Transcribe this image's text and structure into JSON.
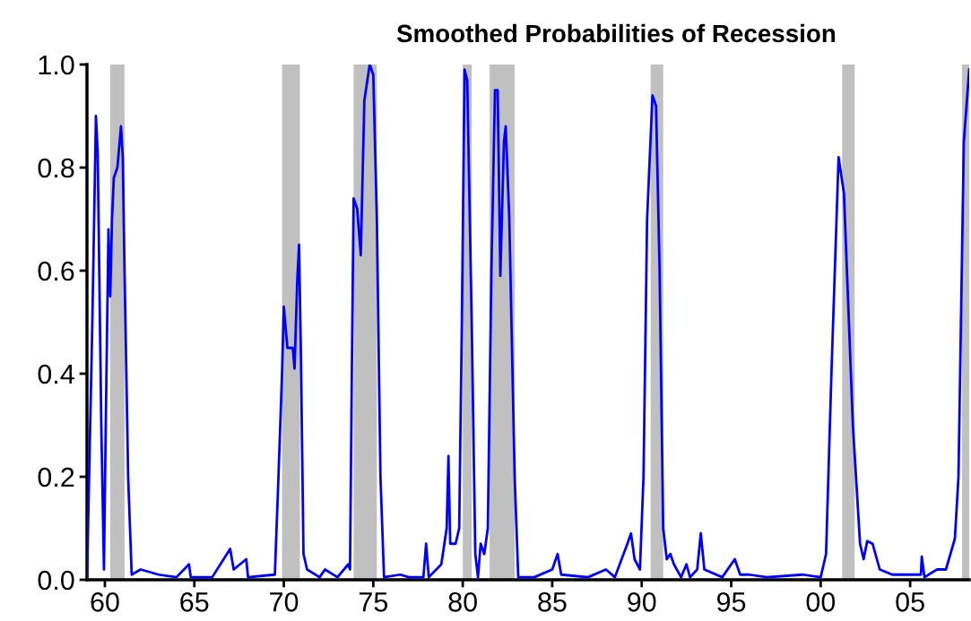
{
  "chart_data": {
    "type": "line",
    "title": "Smoothed Probabilities of Recession",
    "x": [
      1959.0,
      1959.3,
      1959.5,
      1959.6,
      1959.8,
      1959.95,
      1960.05,
      1960.2,
      1960.3,
      1960.4,
      1960.5,
      1960.7,
      1960.9,
      1961.0,
      1961.1,
      1961.3,
      1961.5,
      1962,
      1963,
      1964,
      1964.7,
      1964.8,
      1966,
      1967,
      1967.2,
      1967.9,
      1968,
      1969.5,
      1969.7,
      1969.9,
      1970.0,
      1970.2,
      1970.5,
      1970.6,
      1970.75,
      1970.85,
      1970.95,
      1971.1,
      1971.3,
      1972,
      1972.3,
      1973,
      1973.6,
      1973.7,
      1973.8,
      1973.9,
      1974.1,
      1974.3,
      1974.5,
      1974.8,
      1975.0,
      1975.2,
      1975.4,
      1975.6,
      1976.5,
      1977,
      1977.8,
      1977.95,
      1978.1,
      1978.8,
      1979.1,
      1979.2,
      1979.3,
      1979.6,
      1979.8,
      1979.95,
      1980.1,
      1980.25,
      1980.5,
      1980.7,
      1980.85,
      1981.0,
      1981.2,
      1981.4,
      1981.6,
      1981.8,
      1981.95,
      1982.1,
      1982.3,
      1982.4,
      1982.6,
      1982.9,
      1983.1,
      1984,
      1985,
      1985.3,
      1985.5,
      1987,
      1988,
      1988.5,
      1989.2,
      1989.4,
      1989.6,
      1989.9,
      1990.1,
      1990.3,
      1990.6,
      1990.8,
      1991.0,
      1991.2,
      1991.4,
      1991.6,
      1991.8,
      1992.2,
      1992.5,
      1992.7,
      1993.1,
      1993.3,
      1993.5,
      1994.5,
      1995.2,
      1995.5,
      1996,
      1997,
      1999,
      2000,
      2000.3,
      2000.6,
      2001.0,
      2001.3,
      2001.8,
      2002.2,
      2002.4,
      2002.6,
      2002.9,
      2003.3,
      2004,
      2005,
      2005.6,
      2005.65,
      2005.8,
      2006.5,
      2007,
      2007.5,
      2007.7,
      2008,
      2008.3
    ],
    "series": [
      {
        "color": "#0000ff",
        "values": [
          0,
          0.5,
          0.9,
          0.83,
          0.3,
          0.02,
          0.3,
          0.68,
          0.55,
          0.7,
          0.78,
          0.8,
          0.88,
          0.82,
          0.6,
          0.2,
          0.01,
          0.02,
          0.01,
          0.005,
          0.03,
          0.005,
          0.005,
          0.06,
          0.02,
          0.04,
          0.005,
          0.01,
          0.2,
          0.4,
          0.53,
          0.45,
          0.45,
          0.41,
          0.58,
          0.65,
          0.45,
          0.05,
          0.02,
          0.005,
          0.02,
          0.005,
          0.03,
          0.02,
          0.4,
          0.74,
          0.72,
          0.63,
          0.93,
          1.0,
          0.98,
          0.7,
          0.2,
          0.005,
          0.01,
          0.005,
          0.005,
          0.07,
          0.005,
          0.03,
          0.1,
          0.24,
          0.07,
          0.07,
          0.1,
          0.5,
          0.99,
          0.97,
          0.5,
          0.05,
          0.005,
          0.07,
          0.05,
          0.1,
          0.6,
          0.95,
          0.95,
          0.59,
          0.85,
          0.88,
          0.7,
          0.2,
          0.005,
          0.005,
          0.02,
          0.05,
          0.01,
          0.005,
          0.02,
          0.005,
          0.07,
          0.09,
          0.04,
          0.02,
          0.2,
          0.7,
          0.94,
          0.92,
          0.6,
          0.1,
          0.04,
          0.05,
          0.03,
          0.005,
          0.03,
          0.005,
          0.02,
          0.09,
          0.02,
          0.005,
          0.04,
          0.01,
          0.01,
          0.005,
          0.01,
          0.005,
          0.05,
          0.4,
          0.82,
          0.75,
          0.3,
          0.07,
          0.04,
          0.075,
          0.07,
          0.02,
          0.01,
          0.01,
          0.01,
          0.045,
          0.005,
          0.02,
          0.02,
          0.08,
          0.2,
          0.85,
          0.99
        ]
      }
    ],
    "bands": [
      {
        "axis": "x",
        "from": 1960.3,
        "to": 1961.1,
        "color": "#c0c0c0"
      },
      {
        "axis": "x",
        "from": 1969.9,
        "to": 1970.9,
        "color": "#c0c0c0"
      },
      {
        "axis": "x",
        "from": 1973.9,
        "to": 1975.2,
        "color": "#c0c0c0"
      },
      {
        "axis": "x",
        "from": 1980.0,
        "to": 1980.5,
        "color": "#c0c0c0"
      },
      {
        "axis": "x",
        "from": 1981.5,
        "to": 1982.9,
        "color": "#c0c0c0"
      },
      {
        "axis": "x",
        "from": 1990.5,
        "to": 1991.2,
        "color": "#c0c0c0"
      },
      {
        "axis": "x",
        "from": 2001.2,
        "to": 2001.9,
        "color": "#c0c0c0"
      },
      {
        "axis": "x",
        "from": 2007.9,
        "to": 2008.3,
        "color": "#c0c0c0"
      }
    ],
    "xlim": [
      1959.0,
      2008.3
    ],
    "xticks": [
      {
        "value": 1960,
        "label": "60"
      },
      {
        "value": 1965,
        "label": "65"
      },
      {
        "value": 1970,
        "label": "70"
      },
      {
        "value": 1975,
        "label": "75"
      },
      {
        "value": 1980,
        "label": "80"
      },
      {
        "value": 1985,
        "label": "85"
      },
      {
        "value": 1990,
        "label": "90"
      },
      {
        "value": 1995,
        "label": "95"
      },
      {
        "value": 2000,
        "label": "00"
      },
      {
        "value": 2005,
        "label": "05"
      }
    ],
    "ylim": [
      0,
      1.0
    ],
    "yticks": [
      {
        "value": 0,
        "label": "0.0"
      },
      {
        "value": 0.2,
        "label": "0.2"
      },
      {
        "value": 0.4,
        "label": "0.4"
      },
      {
        "value": 0.6,
        "label": "0.6"
      },
      {
        "value": 0.8,
        "label": "0.8"
      },
      {
        "value": 1.0,
        "label": "1.0"
      }
    ],
    "grid": false,
    "legend": false
  }
}
